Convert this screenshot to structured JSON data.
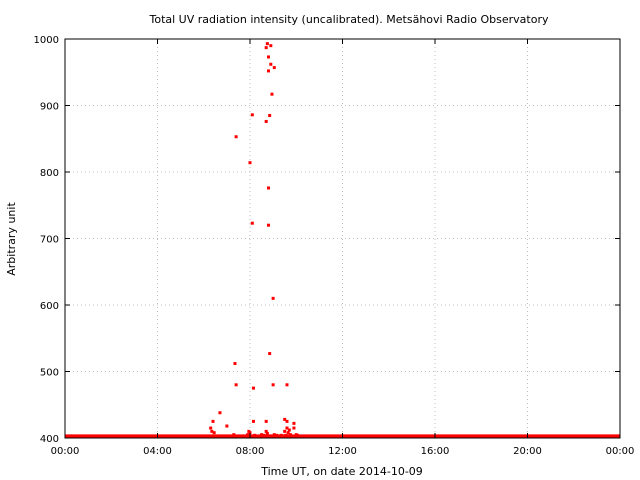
{
  "chart_data": {
    "type": "scatter",
    "title": "Total UV radiation intensity (uncalibrated). Metsähovi Radio Observatory",
    "xlabel": "Time UT, on date 2014-10-09",
    "ylabel": "Arbitrary unit",
    "xlim": [
      0,
      24
    ],
    "ylim": [
      400,
      1000
    ],
    "xticks": [
      {
        "value": 0,
        "label": "00:00"
      },
      {
        "value": 4,
        "label": "04:00"
      },
      {
        "value": 8,
        "label": "08:00"
      },
      {
        "value": 12,
        "label": "12:00"
      },
      {
        "value": 16,
        "label": "16:00"
      },
      {
        "value": 20,
        "label": "20:00"
      },
      {
        "value": 24,
        "label": "00:00"
      }
    ],
    "yticks": [
      {
        "value": 400,
        "label": "400"
      },
      {
        "value": 500,
        "label": "500"
      },
      {
        "value": 600,
        "label": "600"
      },
      {
        "value": 700,
        "label": "700"
      },
      {
        "value": 800,
        "label": "800"
      },
      {
        "value": 900,
        "label": "900"
      },
      {
        "value": 1000,
        "label": "1000"
      }
    ],
    "grid": true,
    "legend": "none",
    "marker_color": "#ff0000",
    "baseline": {
      "x_start": 0,
      "x_end": 24,
      "y": 401
    },
    "points": [
      {
        "x": 6.3,
        "y": 415
      },
      {
        "x": 6.35,
        "y": 410
      },
      {
        "x": 6.4,
        "y": 425
      },
      {
        "x": 6.45,
        "y": 408
      },
      {
        "x": 6.7,
        "y": 438
      },
      {
        "x": 7.0,
        "y": 418
      },
      {
        "x": 7.3,
        "y": 405
      },
      {
        "x": 7.35,
        "y": 512
      },
      {
        "x": 7.4,
        "y": 480
      },
      {
        "x": 7.4,
        "y": 853
      },
      {
        "x": 7.9,
        "y": 405
      },
      {
        "x": 7.95,
        "y": 410
      },
      {
        "x": 8.0,
        "y": 408
      },
      {
        "x": 8.05,
        "y": 402
      },
      {
        "x": 8.0,
        "y": 814
      },
      {
        "x": 8.1,
        "y": 723
      },
      {
        "x": 8.1,
        "y": 886
      },
      {
        "x": 8.15,
        "y": 475
      },
      {
        "x": 8.15,
        "y": 425
      },
      {
        "x": 8.2,
        "y": 404
      },
      {
        "x": 8.5,
        "y": 405
      },
      {
        "x": 8.6,
        "y": 404
      },
      {
        "x": 8.7,
        "y": 425
      },
      {
        "x": 8.7,
        "y": 410
      },
      {
        "x": 8.7,
        "y": 876
      },
      {
        "x": 8.7,
        "y": 987
      },
      {
        "x": 8.75,
        "y": 407
      },
      {
        "x": 8.75,
        "y": 993
      },
      {
        "x": 8.8,
        "y": 776
      },
      {
        "x": 8.8,
        "y": 720
      },
      {
        "x": 8.8,
        "y": 952
      },
      {
        "x": 8.8,
        "y": 973
      },
      {
        "x": 8.85,
        "y": 885
      },
      {
        "x": 8.85,
        "y": 527
      },
      {
        "x": 8.9,
        "y": 990
      },
      {
        "x": 8.9,
        "y": 962
      },
      {
        "x": 8.95,
        "y": 917
      },
      {
        "x": 9.0,
        "y": 610
      },
      {
        "x": 9.0,
        "y": 480
      },
      {
        "x": 9.05,
        "y": 957
      },
      {
        "x": 9.05,
        "y": 405
      },
      {
        "x": 9.1,
        "y": 402
      },
      {
        "x": 9.15,
        "y": 404
      },
      {
        "x": 9.25,
        "y": 403
      },
      {
        "x": 9.35,
        "y": 404
      },
      {
        "x": 9.5,
        "y": 428
      },
      {
        "x": 9.5,
        "y": 410
      },
      {
        "x": 9.55,
        "y": 404
      },
      {
        "x": 9.6,
        "y": 480
      },
      {
        "x": 9.6,
        "y": 415
      },
      {
        "x": 9.6,
        "y": 425
      },
      {
        "x": 9.65,
        "y": 408
      },
      {
        "x": 9.7,
        "y": 412
      },
      {
        "x": 9.75,
        "y": 405
      },
      {
        "x": 9.9,
        "y": 415
      },
      {
        "x": 9.9,
        "y": 422
      },
      {
        "x": 10.0,
        "y": 405
      },
      {
        "x": 10.05,
        "y": 404
      }
    ]
  }
}
